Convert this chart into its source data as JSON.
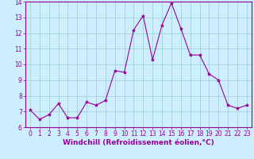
{
  "x": [
    0,
    1,
    2,
    3,
    4,
    5,
    6,
    7,
    8,
    9,
    10,
    11,
    12,
    13,
    14,
    15,
    16,
    17,
    18,
    19,
    20,
    21,
    22,
    23
  ],
  "y": [
    7.1,
    6.5,
    6.8,
    7.5,
    6.6,
    6.6,
    7.6,
    7.4,
    7.7,
    9.6,
    9.5,
    12.2,
    13.1,
    10.3,
    12.5,
    13.9,
    12.3,
    10.6,
    10.6,
    9.4,
    9.0,
    7.4,
    7.2,
    7.4
  ],
  "line_color": "#990099",
  "marker": "*",
  "marker_size": 3,
  "bg_color": "#cceeff",
  "grid_color": "#99cccc",
  "xlabel": "Windchill (Refroidissement éolien,°C)",
  "xlabel_fontsize": 6.5,
  "xlabel_color": "#990099",
  "xlabel_bold": true,
  "ylim": [
    6,
    14
  ],
  "xlim": [
    -0.5,
    23.5
  ],
  "yticks": [
    6,
    7,
    8,
    9,
    10,
    11,
    12,
    13,
    14
  ],
  "xticks": [
    0,
    1,
    2,
    3,
    4,
    5,
    6,
    7,
    8,
    9,
    10,
    11,
    12,
    13,
    14,
    15,
    16,
    17,
    18,
    19,
    20,
    21,
    22,
    23
  ],
  "tick_fontsize": 5.5,
  "tick_color": "#990099",
  "spine_color": "#990099"
}
